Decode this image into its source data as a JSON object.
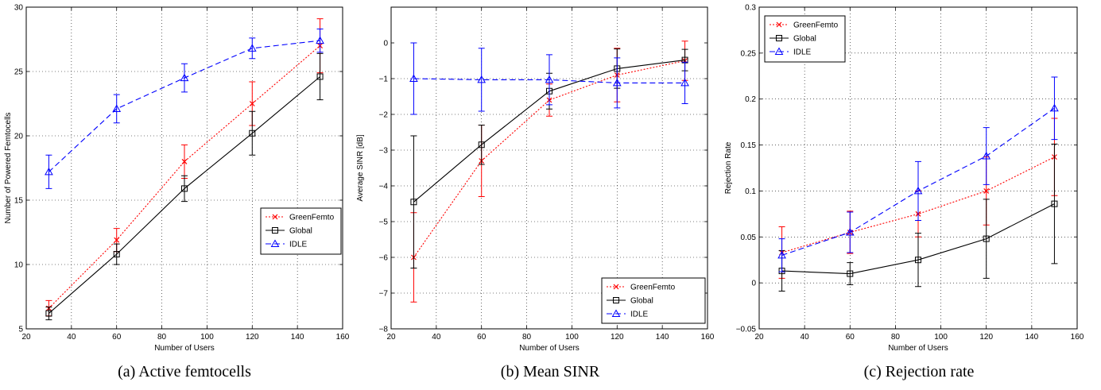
{
  "chart_data": [
    {
      "type": "line",
      "caption": "(a) Active femtocells",
      "xlabel": "Number of Users",
      "ylabel": "Number of Powered Femtocells",
      "xlim": [
        20,
        160
      ],
      "ylim": [
        5,
        30
      ],
      "xticks": [
        20,
        40,
        60,
        80,
        100,
        120,
        140,
        160
      ],
      "yticks": [
        5,
        10,
        15,
        20,
        25,
        30
      ],
      "ytick_labels": [
        "5",
        "10",
        "15",
        "20",
        "25",
        "30"
      ],
      "grid": true,
      "legend_position": "center-right",
      "x": [
        30,
        60,
        90,
        120,
        150
      ],
      "series": [
        {
          "name": "GreenFemto",
          "color": "#ff0000",
          "dash": "dotted",
          "marker": "x",
          "values": [
            6.6,
            11.9,
            18.0,
            22.5,
            27.0
          ],
          "err": [
            0.6,
            0.9,
            1.3,
            1.7,
            2.1
          ]
        },
        {
          "name": "Global",
          "color": "#000000",
          "dash": "solid",
          "marker": "square",
          "values": [
            6.2,
            10.8,
            15.9,
            20.2,
            24.6
          ],
          "err": [
            0.5,
            0.8,
            1.0,
            1.7,
            1.8
          ]
        },
        {
          "name": "IDLE",
          "color": "#0000ff",
          "dash": "dashed",
          "marker": "triangle",
          "values": [
            17.2,
            22.1,
            24.5,
            26.8,
            27.4
          ],
          "err": [
            1.3,
            1.1,
            1.1,
            0.8,
            0.9
          ]
        }
      ]
    },
    {
      "type": "line",
      "caption": "(b) Mean SINR",
      "xlabel": "Number of Users",
      "ylabel": "Average SINR [dB]",
      "xlim": [
        20,
        160
      ],
      "ylim": [
        -8,
        1
      ],
      "xticks": [
        20,
        40,
        60,
        80,
        100,
        120,
        140,
        160
      ],
      "yticks": [
        -8,
        -7,
        -6,
        -5,
        -4,
        -3,
        -2,
        -1,
        0
      ],
      "ytick_labels": [
        "−8",
        "−7",
        "−6",
        "−5",
        "−4",
        "−3",
        "−2",
        "−1",
        "0"
      ],
      "grid": true,
      "legend_position": "bottom-right",
      "x": [
        30,
        60,
        90,
        120,
        150
      ],
      "series": [
        {
          "name": "GreenFemto",
          "color": "#ff0000",
          "dash": "dotted",
          "marker": "x",
          "values": [
            -6.0,
            -3.3,
            -1.6,
            -0.9,
            -0.5
          ],
          "err": [
            1.25,
            1.0,
            0.45,
            0.75,
            0.55
          ]
        },
        {
          "name": "Global",
          "color": "#000000",
          "dash": "solid",
          "marker": "square",
          "values": [
            -4.45,
            -2.85,
            -1.35,
            -0.72,
            -0.48
          ],
          "err": [
            1.85,
            0.55,
            0.5,
            0.55,
            0.3
          ]
        },
        {
          "name": "IDLE",
          "color": "#0000ff",
          "dash": "dashed",
          "marker": "triangle",
          "values": [
            -1.0,
            -1.03,
            -1.03,
            -1.12,
            -1.12
          ],
          "err": [
            1.0,
            0.88,
            0.7,
            0.7,
            0.58
          ]
        }
      ]
    },
    {
      "type": "line",
      "caption": "(c) Rejection rate",
      "xlabel": "Number of Users",
      "ylabel": "Rejection Rate",
      "xlim": [
        20,
        160
      ],
      "ylim": [
        -0.05,
        0.3
      ],
      "xticks": [
        20,
        40,
        60,
        80,
        100,
        120,
        140,
        160
      ],
      "yticks": [
        -0.05,
        0,
        0.05,
        0.1,
        0.15,
        0.2,
        0.25,
        0.3
      ],
      "ytick_labels": [
        "−0.05",
        "0",
        "0.05",
        "0.1",
        "0.15",
        "0.2",
        "0.25",
        "0.3"
      ],
      "grid": true,
      "legend_position": "top-left",
      "x": [
        30,
        60,
        90,
        120,
        150
      ],
      "series": [
        {
          "name": "GreenFemto",
          "color": "#ff0000",
          "dash": "dotted",
          "marker": "x",
          "values": [
            0.033,
            0.055,
            0.075,
            0.1,
            0.137
          ],
          "err": [
            0.028,
            0.023,
            0.025,
            0.037,
            0.042
          ]
        },
        {
          "name": "Global",
          "color": "#000000",
          "dash": "solid",
          "marker": "square",
          "values": [
            0.013,
            0.01,
            0.025,
            0.048,
            0.086
          ],
          "err": [
            0.022,
            0.012,
            0.029,
            0.043,
            0.065
          ]
        },
        {
          "name": "IDLE",
          "color": "#0000ff",
          "dash": "dashed",
          "marker": "triangle",
          "values": [
            0.03,
            0.055,
            0.1,
            0.138,
            0.19
          ],
          "err": [
            0.018,
            0.022,
            0.032,
            0.031,
            0.034
          ]
        }
      ]
    }
  ]
}
